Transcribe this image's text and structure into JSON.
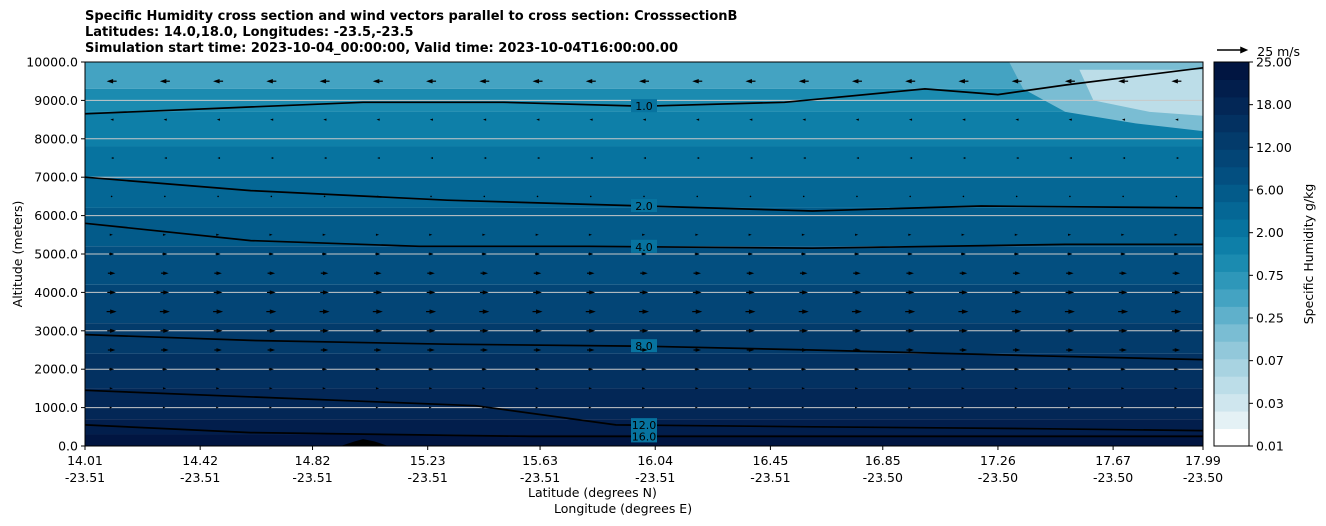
{
  "title_lines": [
    "Specific Humidity cross section and wind vectors parallel to cross section: CrosssectionB",
    "Latitudes: 14.0,18.0, Longitudes: -23.5,-23.5",
    "Simulation start time: 2023-10-04_00:00:00, Valid time: 2023-10-04T16:00:00.00"
  ],
  "chart_data": {
    "type": "heatmap",
    "title": "Specific Humidity cross section and wind vectors parallel to cross section: CrosssectionB",
    "ylabel": "Altitude (meters)",
    "xlabel_lat": "Latitude (degrees N)",
    "xlabel_lon": "Longitude (degrees E)",
    "ylim": [
      0,
      10000
    ],
    "yticks": [
      "0.0",
      "1000.0",
      "2000.0",
      "3000.0",
      "4000.0",
      "5000.0",
      "6000.0",
      "7000.0",
      "8000.0",
      "9000.0",
      "10000.0"
    ],
    "xlim": [
      14.01,
      17.99
    ],
    "x_positions": [
      14.01,
      14.42,
      14.82,
      15.23,
      15.63,
      16.04,
      16.45,
      16.85,
      17.26,
      17.67,
      17.99
    ],
    "xticks_lat": [
      "14.01",
      "14.42",
      "14.82",
      "15.23",
      "15.63",
      "16.04",
      "16.45",
      "16.85",
      "17.26",
      "17.67",
      "17.99"
    ],
    "xticks_lon": [
      "-23.51",
      "-23.51",
      "-23.51",
      "-23.51",
      "-23.51",
      "-23.51",
      "-23.51",
      "-23.50",
      "-23.50",
      "-23.50",
      "-23.50"
    ],
    "grid": "horizontal",
    "colorbar": {
      "label": "Specific Humidity g/kg",
      "tick_labels": [
        "0.01",
        "0.03",
        "0.07",
        "0.25",
        "0.75",
        "2.00",
        "6.00",
        "12.00",
        "18.00",
        "25.00"
      ],
      "colors": [
        "#ffffff",
        "#e4f1f5",
        "#cfe6ee",
        "#bcdde8",
        "#a8d3e1",
        "#92c8da",
        "#7abdd3",
        "#5fb0cb",
        "#44a3c2",
        "#2e97b9",
        "#1b8bb0",
        "#0e7fa8",
        "#07739f",
        "#056795",
        "#035b8a",
        "#034f80",
        "#034576",
        "#033b6b",
        "#033161",
        "#032756",
        "#021e4c",
        "#011541"
      ]
    },
    "quiver_key": {
      "label": "25 m/s",
      "speed": 25
    },
    "contours": [
      {
        "label": "1.0",
        "x": [
          14.01,
          14.5,
          15.0,
          15.5,
          16.0,
          16.5,
          17.0,
          17.26,
          17.5,
          17.99
        ],
        "y": [
          8650,
          8800,
          8950,
          8950,
          8850,
          8950,
          9300,
          9150,
          9400,
          9850
        ]
      },
      {
        "label": "2.0",
        "x": [
          14.01,
          14.6,
          15.3,
          16.0,
          16.6,
          17.2,
          17.99
        ],
        "y": [
          7000,
          6650,
          6400,
          6250,
          6120,
          6250,
          6200
        ]
      },
      {
        "label": "4.0",
        "x": [
          14.01,
          14.6,
          15.2,
          15.8,
          16.6,
          17.5,
          17.99
        ],
        "y": [
          5800,
          5350,
          5200,
          5200,
          5150,
          5250,
          5250
        ]
      },
      {
        "label": "8.0",
        "x": [
          14.01,
          14.6,
          15.3,
          16.0,
          16.6,
          17.4,
          17.99
        ],
        "y": [
          2900,
          2750,
          2650,
          2600,
          2500,
          2350,
          2250
        ]
      },
      {
        "label": "12.0",
        "x": [
          14.01,
          14.7,
          15.4,
          15.9,
          16.6,
          17.4,
          17.99
        ],
        "y": [
          1450,
          1250,
          1050,
          550,
          500,
          450,
          400
        ]
      },
      {
        "label": "16.0",
        "x": [
          14.01,
          14.6,
          15.1,
          15.6,
          16.2,
          16.8,
          17.5,
          17.99
        ],
        "y": [
          550,
          350,
          300,
          250,
          250,
          250,
          250,
          250
        ]
      }
    ],
    "wind_u_by_level": [
      {
        "altitude": 9500,
        "u": -8
      },
      {
        "altitude": 8500,
        "u": -2
      },
      {
        "altitude": 7500,
        "u": -1
      },
      {
        "altitude": 6500,
        "u": 0
      },
      {
        "altitude": 5500,
        "u": 2
      },
      {
        "altitude": 5000,
        "u": 4
      },
      {
        "altitude": 4500,
        "u": 6
      },
      {
        "altitude": 4000,
        "u": 7
      },
      {
        "altitude": 3500,
        "u": 8
      },
      {
        "altitude": 3000,
        "u": 7
      },
      {
        "altitude": 2500,
        "u": 6
      },
      {
        "altitude": 2000,
        "u": 4
      },
      {
        "altitude": 1500,
        "u": 2
      },
      {
        "altitude": 1000,
        "u": 1
      }
    ]
  }
}
